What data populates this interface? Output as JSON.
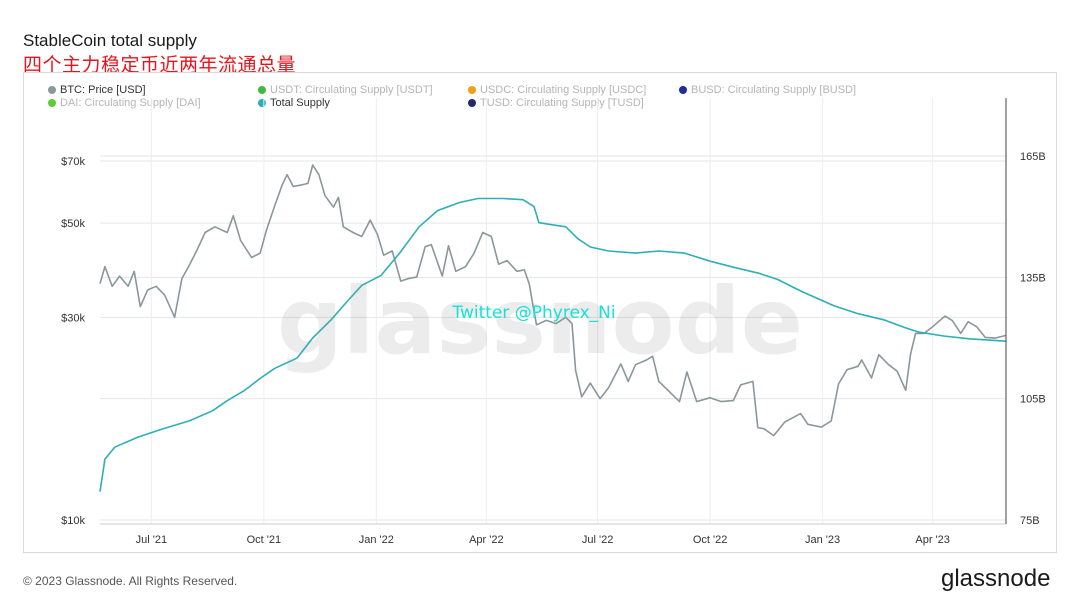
{
  "title": "StableCoin total supply",
  "subtitle": "四个主力稳定币近两年流通总量",
  "legend": [
    {
      "label": "BTC: Price [USD]",
      "color": "#8a979b",
      "active": true
    },
    {
      "label": "USDT: Circulating Supply [USDT]",
      "color": "#3fba3f",
      "active": false
    },
    {
      "label": "USDC: Circulating Supply [USDC]",
      "color": "#f0a010",
      "active": false
    },
    {
      "label": "BUSD: Circulating Supply [BUSD]",
      "color": "#1f2b9e",
      "active": false
    },
    {
      "label": "DAI: Circulating Supply [DAI]",
      "color": "#5ccc3a",
      "active": false
    },
    {
      "label": "Total Supply",
      "color": "#2eafb6",
      "active": true
    },
    {
      "label": "TUSD: Circulating Supply [TUSD]",
      "color": "#22286b",
      "active": false
    }
  ],
  "watermark": "glassnode",
  "overlay_text": "Twitter @Phyrex_Ni",
  "footer": "© 2023 Glassnode. All Rights Reserved.",
  "brand": "glassnode",
  "colors": {
    "btc": "#8a979b",
    "total_supply": "#2eafb6",
    "overlay": "#19e0d8",
    "grid": "#e6e6e6"
  },
  "chart_data": {
    "type": "line",
    "x_tick_labels": [
      "Jul '21",
      "Oct '21",
      "Jan '22",
      "Apr '22",
      "Jul '22",
      "Oct '22",
      "Jan '23",
      "Apr '23"
    ],
    "x_tick_dates": [
      "2021-07-01",
      "2021-10-01",
      "2022-01-01",
      "2022-04-01",
      "2022-07-01",
      "2022-10-01",
      "2023-01-01",
      "2023-04-01"
    ],
    "x_range": [
      "2021-05-20",
      "2023-05-31"
    ],
    "y_left": {
      "ticks": [
        10000,
        30000,
        50000,
        70000
      ],
      "tick_labels": [
        "$10k",
        "$30k",
        "$50k",
        "$70k"
      ],
      "scale": "log"
    },
    "y_right": {
      "ticks": [
        75,
        105,
        135,
        165
      ],
      "tick_labels": [
        "75B",
        "105B",
        "135B",
        "165B"
      ],
      "scale": "linear"
    },
    "series": [
      {
        "name": "BTC: Price [USD]",
        "axis": "left",
        "points": [
          [
            "2021-05-20",
            36000
          ],
          [
            "2021-05-24",
            39500
          ],
          [
            "2021-05-30",
            35500
          ],
          [
            "2021-06-05",
            37500
          ],
          [
            "2021-06-12",
            35500
          ],
          [
            "2021-06-17",
            38500
          ],
          [
            "2021-06-22",
            31800
          ],
          [
            "2021-06-28",
            34800
          ],
          [
            "2021-07-05",
            35500
          ],
          [
            "2021-07-12",
            33800
          ],
          [
            "2021-07-20",
            30000
          ],
          [
            "2021-07-26",
            37000
          ],
          [
            "2021-08-01",
            39800
          ],
          [
            "2021-08-07",
            43000
          ],
          [
            "2021-08-14",
            47500
          ],
          [
            "2021-08-22",
            49000
          ],
          [
            "2021-09-01",
            47500
          ],
          [
            "2021-09-06",
            52000
          ],
          [
            "2021-09-12",
            45500
          ],
          [
            "2021-09-21",
            41500
          ],
          [
            "2021-09-28",
            42500
          ],
          [
            "2021-10-03",
            48000
          ],
          [
            "2021-10-10",
            55000
          ],
          [
            "2021-10-16",
            61500
          ],
          [
            "2021-10-20",
            65000
          ],
          [
            "2021-10-25",
            61000
          ],
          [
            "2021-11-01",
            61500
          ],
          [
            "2021-11-06",
            62000
          ],
          [
            "2021-11-10",
            68500
          ],
          [
            "2021-11-15",
            65000
          ],
          [
            "2021-11-20",
            58000
          ],
          [
            "2021-11-27",
            54500
          ],
          [
            "2021-12-01",
            57500
          ],
          [
            "2021-12-05",
            49000
          ],
          [
            "2021-12-13",
            47500
          ],
          [
            "2021-12-20",
            46500
          ],
          [
            "2021-12-27",
            50800
          ],
          [
            "2022-01-02",
            47000
          ],
          [
            "2022-01-07",
            42000
          ],
          [
            "2022-01-14",
            43000
          ],
          [
            "2022-01-21",
            36500
          ],
          [
            "2022-01-27",
            37000
          ],
          [
            "2022-02-03",
            37300
          ],
          [
            "2022-02-10",
            44000
          ],
          [
            "2022-02-15",
            44500
          ],
          [
            "2022-02-24",
            37500
          ],
          [
            "2022-03-01",
            44200
          ],
          [
            "2022-03-07",
            38500
          ],
          [
            "2022-03-15",
            39500
          ],
          [
            "2022-03-22",
            42500
          ],
          [
            "2022-03-29",
            47500
          ],
          [
            "2022-04-05",
            46500
          ],
          [
            "2022-04-11",
            40000
          ],
          [
            "2022-04-18",
            40800
          ],
          [
            "2022-04-26",
            38500
          ],
          [
            "2022-05-02",
            38800
          ],
          [
            "2022-05-06",
            36000
          ],
          [
            "2022-05-10",
            31000
          ],
          [
            "2022-05-12",
            28800
          ],
          [
            "2022-05-20",
            29500
          ],
          [
            "2022-05-28",
            29000
          ],
          [
            "2022-06-05",
            30000
          ],
          [
            "2022-06-10",
            29000
          ],
          [
            "2022-06-13",
            22500
          ],
          [
            "2022-06-18",
            19500
          ],
          [
            "2022-06-25",
            21000
          ],
          [
            "2022-07-03",
            19300
          ],
          [
            "2022-07-10",
            20500
          ],
          [
            "2022-07-20",
            23300
          ],
          [
            "2022-07-26",
            21200
          ],
          [
            "2022-08-01",
            23200
          ],
          [
            "2022-08-10",
            23800
          ],
          [
            "2022-08-15",
            24300
          ],
          [
            "2022-08-20",
            21200
          ],
          [
            "2022-08-29",
            20000
          ],
          [
            "2022-09-06",
            19000
          ],
          [
            "2022-09-12",
            22300
          ],
          [
            "2022-09-20",
            19000
          ],
          [
            "2022-10-01",
            19400
          ],
          [
            "2022-10-10",
            19000
          ],
          [
            "2022-10-20",
            19100
          ],
          [
            "2022-10-26",
            20800
          ],
          [
            "2022-11-05",
            21200
          ],
          [
            "2022-11-09",
            16500
          ],
          [
            "2022-11-14",
            16400
          ],
          [
            "2022-11-22",
            15800
          ],
          [
            "2022-12-01",
            17000
          ],
          [
            "2022-12-14",
            17800
          ],
          [
            "2022-12-20",
            16800
          ],
          [
            "2022-12-31",
            16550
          ],
          [
            "2023-01-08",
            17100
          ],
          [
            "2023-01-14",
            20900
          ],
          [
            "2023-01-21",
            22600
          ],
          [
            "2023-01-30",
            23000
          ],
          [
            "2023-02-02",
            23800
          ],
          [
            "2023-02-10",
            21600
          ],
          [
            "2023-02-16",
            24500
          ],
          [
            "2023-02-24",
            23200
          ],
          [
            "2023-03-03",
            22400
          ],
          [
            "2023-03-10",
            20200
          ],
          [
            "2023-03-14",
            24600
          ],
          [
            "2023-03-18",
            27500
          ],
          [
            "2023-03-25",
            27500
          ],
          [
            "2023-04-01",
            28500
          ],
          [
            "2023-04-11",
            30200
          ],
          [
            "2023-04-17",
            29500
          ],
          [
            "2023-04-24",
            27500
          ],
          [
            "2023-04-30",
            29300
          ],
          [
            "2023-05-07",
            28500
          ],
          [
            "2023-05-14",
            26900
          ],
          [
            "2023-05-22",
            26800
          ],
          [
            "2023-05-31",
            27200
          ]
        ]
      },
      {
        "name": "Total Supply",
        "axis": "right",
        "points": [
          [
            "2021-05-20",
            82
          ],
          [
            "2021-05-24",
            90
          ],
          [
            "2021-06-01",
            93
          ],
          [
            "2021-06-20",
            95.5
          ],
          [
            "2021-07-10",
            97.5
          ],
          [
            "2021-08-01",
            99.5
          ],
          [
            "2021-08-20",
            102
          ],
          [
            "2021-09-01",
            104.5
          ],
          [
            "2021-09-15",
            107
          ],
          [
            "2021-09-28",
            110
          ],
          [
            "2021-10-10",
            112.5
          ],
          [
            "2021-10-28",
            115
          ],
          [
            "2021-11-10",
            120
          ],
          [
            "2021-11-25",
            124.5
          ],
          [
            "2021-12-08",
            129
          ],
          [
            "2021-12-20",
            133
          ],
          [
            "2022-01-05",
            135.5
          ],
          [
            "2022-01-20",
            141
          ],
          [
            "2022-02-05",
            147.5
          ],
          [
            "2022-02-20",
            151.5
          ],
          [
            "2022-03-10",
            153.5
          ],
          [
            "2022-03-25",
            154.5
          ],
          [
            "2022-04-15",
            154.5
          ],
          [
            "2022-05-01",
            154.2
          ],
          [
            "2022-05-10",
            152.5
          ],
          [
            "2022-05-14",
            148.5
          ],
          [
            "2022-05-25",
            148
          ],
          [
            "2022-06-05",
            147.5
          ],
          [
            "2022-06-15",
            144.5
          ],
          [
            "2022-06-25",
            142.5
          ],
          [
            "2022-07-10",
            141.5
          ],
          [
            "2022-08-01",
            141
          ],
          [
            "2022-08-20",
            141.5
          ],
          [
            "2022-09-10",
            141
          ],
          [
            "2022-10-01",
            139
          ],
          [
            "2022-10-20",
            137.5
          ],
          [
            "2022-11-10",
            136
          ],
          [
            "2022-11-25",
            134.5
          ],
          [
            "2022-12-15",
            131.5
          ],
          [
            "2023-01-10",
            128
          ],
          [
            "2023-01-30",
            126
          ],
          [
            "2023-02-20",
            124.5
          ],
          [
            "2023-03-10",
            122.5
          ],
          [
            "2023-03-20",
            121.5
          ],
          [
            "2023-04-10",
            120.5
          ],
          [
            "2023-05-01",
            119.8
          ],
          [
            "2023-05-31",
            119.2
          ]
        ]
      }
    ],
    "grid": true
  }
}
